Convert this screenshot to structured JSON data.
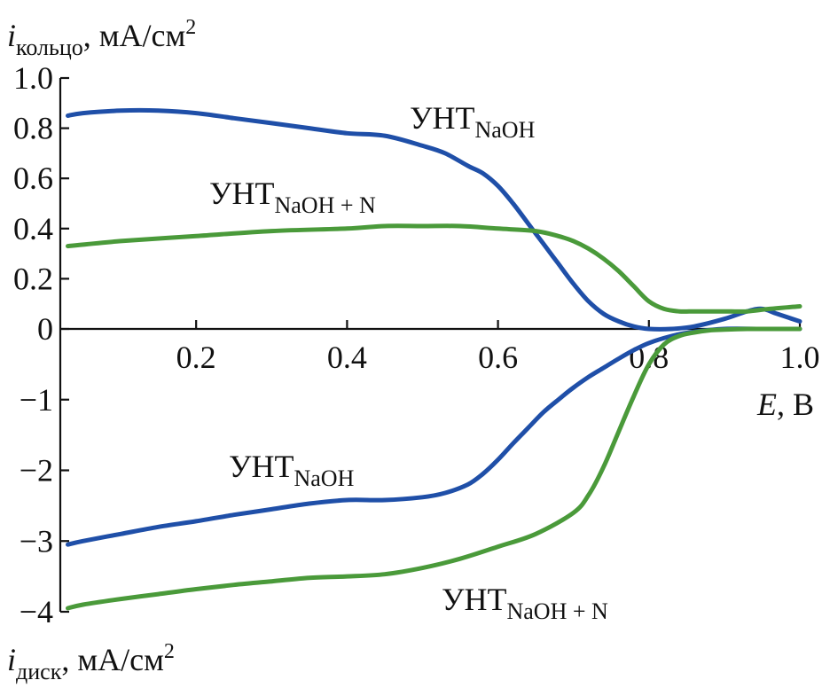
{
  "chart_data": {
    "type": "line",
    "x_axis": {
      "label_var": "E",
      "label_unit": ", В",
      "range": [
        0.02,
        1.0
      ],
      "ticks": [
        {
          "value": 0.2,
          "label": "0.2"
        },
        {
          "value": 0.4,
          "label": "0.4"
        },
        {
          "value": 0.6,
          "label": "0.6"
        },
        {
          "value": 0.8,
          "label": "0.8"
        },
        {
          "value": 1.0,
          "label": "1.0"
        }
      ]
    },
    "ring_axis": {
      "label_var": "i",
      "label_sub": "кольцо",
      "label_unit": ", мА/см",
      "label_sup": "2",
      "range": [
        0,
        1.0
      ],
      "ticks": [
        {
          "value": 1.0,
          "label": "1.0"
        },
        {
          "value": 0.8,
          "label": "0.8"
        },
        {
          "value": 0.6,
          "label": "0.6"
        },
        {
          "value": 0.4,
          "label": "0.4"
        },
        {
          "value": 0.2,
          "label": "0.2"
        },
        {
          "value": 0,
          "label": "0"
        }
      ]
    },
    "disk_axis": {
      "label_var": "i",
      "label_sub": "диск",
      "label_unit": ", мА/см",
      "label_sup": "2",
      "range": [
        -4,
        0
      ],
      "ticks": [
        {
          "value": -1,
          "label": "−1"
        },
        {
          "value": -2,
          "label": "−2"
        },
        {
          "value": -3,
          "label": "−3"
        },
        {
          "value": -4,
          "label": "−4"
        }
      ]
    },
    "series": [
      {
        "label_main": "УНТ",
        "label_sub": "NaOH",
        "panel": "ring",
        "color": "#1f4fa8",
        "x": [
          0.03,
          0.05,
          0.1,
          0.15,
          0.2,
          0.25,
          0.3,
          0.35,
          0.4,
          0.45,
          0.5,
          0.53,
          0.56,
          0.58,
          0.6,
          0.62,
          0.64,
          0.66,
          0.68,
          0.7,
          0.72,
          0.74,
          0.76,
          0.78,
          0.8,
          0.83,
          0.86,
          0.9,
          0.93,
          0.95,
          0.97,
          1.0
        ],
        "y": [
          0.85,
          0.86,
          0.87,
          0.87,
          0.86,
          0.84,
          0.82,
          0.8,
          0.78,
          0.77,
          0.73,
          0.7,
          0.65,
          0.62,
          0.57,
          0.5,
          0.42,
          0.34,
          0.26,
          0.18,
          0.11,
          0.06,
          0.03,
          0.01,
          0.0,
          0.0,
          0.01,
          0.04,
          0.07,
          0.08,
          0.06,
          0.03
        ]
      },
      {
        "label_main": "УНТ",
        "label_sub": "NaOH + N",
        "panel": "ring",
        "color": "#4a9a3a",
        "x": [
          0.03,
          0.1,
          0.2,
          0.3,
          0.4,
          0.45,
          0.5,
          0.55,
          0.6,
          0.65,
          0.68,
          0.7,
          0.72,
          0.74,
          0.76,
          0.78,
          0.8,
          0.82,
          0.84,
          0.86,
          0.88,
          0.9,
          0.93,
          0.96,
          1.0
        ],
        "y": [
          0.33,
          0.35,
          0.37,
          0.39,
          0.4,
          0.41,
          0.41,
          0.41,
          0.4,
          0.39,
          0.37,
          0.35,
          0.32,
          0.28,
          0.23,
          0.17,
          0.11,
          0.08,
          0.07,
          0.07,
          0.07,
          0.07,
          0.07,
          0.08,
          0.09
        ]
      },
      {
        "label_main": "УНТ",
        "label_sub": "NaOH",
        "panel": "disk",
        "color": "#1f4fa8",
        "x": [
          0.03,
          0.05,
          0.1,
          0.15,
          0.2,
          0.25,
          0.3,
          0.35,
          0.4,
          0.45,
          0.5,
          0.53,
          0.56,
          0.58,
          0.6,
          0.62,
          0.64,
          0.66,
          0.68,
          0.7,
          0.72,
          0.74,
          0.76,
          0.78,
          0.8,
          0.83,
          0.86,
          0.9,
          0.95,
          1.0
        ],
        "y": [
          -3.05,
          -3.0,
          -2.9,
          -2.8,
          -2.72,
          -2.63,
          -2.55,
          -2.47,
          -2.42,
          -2.42,
          -2.38,
          -2.32,
          -2.2,
          -2.05,
          -1.85,
          -1.62,
          -1.4,
          -1.18,
          -1.0,
          -0.83,
          -0.68,
          -0.55,
          -0.42,
          -0.3,
          -0.2,
          -0.1,
          -0.04,
          0.0,
          0.0,
          0.0
        ]
      },
      {
        "label_main": "УНТ",
        "label_sub": "NaOH + N",
        "panel": "disk",
        "color": "#4a9a3a",
        "x": [
          0.03,
          0.05,
          0.1,
          0.15,
          0.2,
          0.25,
          0.3,
          0.35,
          0.4,
          0.45,
          0.5,
          0.55,
          0.6,
          0.65,
          0.7,
          0.72,
          0.74,
          0.76,
          0.78,
          0.8,
          0.82,
          0.84,
          0.86,
          0.88,
          0.9,
          0.93,
          0.96,
          1.0
        ],
        "y": [
          -3.95,
          -3.9,
          -3.82,
          -3.75,
          -3.68,
          -3.62,
          -3.57,
          -3.52,
          -3.5,
          -3.47,
          -3.38,
          -3.25,
          -3.08,
          -2.9,
          -2.6,
          -2.35,
          -1.95,
          -1.45,
          -0.95,
          -0.5,
          -0.22,
          -0.1,
          -0.05,
          -0.02,
          -0.01,
          0.0,
          0.0,
          0.0
        ]
      }
    ]
  }
}
